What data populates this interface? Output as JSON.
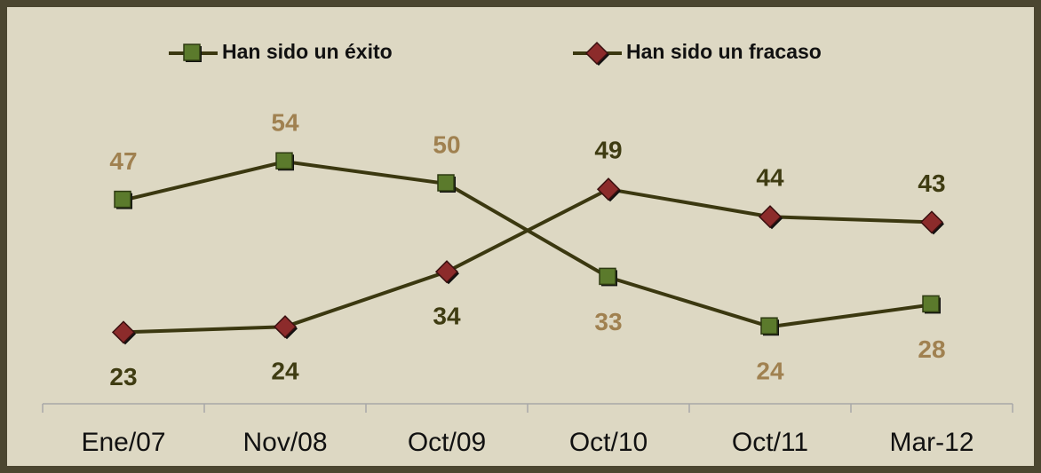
{
  "chart_data": {
    "type": "line",
    "categories": [
      "Ene/07",
      "Nov/08",
      "Oct/09",
      "Oct/10",
      "Oct/11",
      "Mar-12"
    ],
    "series": [
      {
        "name": "Han sido un éxito",
        "color": "#5b7a2c",
        "marker": "square",
        "label_color": "#a08150",
        "values": [
          47,
          54,
          50,
          33,
          24,
          28
        ]
      },
      {
        "name": "Han sido un fracaso",
        "color": "#8c2b2b",
        "marker": "diamond",
        "label_color": "#3f3c12",
        "values": [
          23,
          24,
          34,
          49,
          44,
          43
        ]
      }
    ],
    "line_color": "#3b3810",
    "ylim": [
      10,
      60
    ]
  }
}
